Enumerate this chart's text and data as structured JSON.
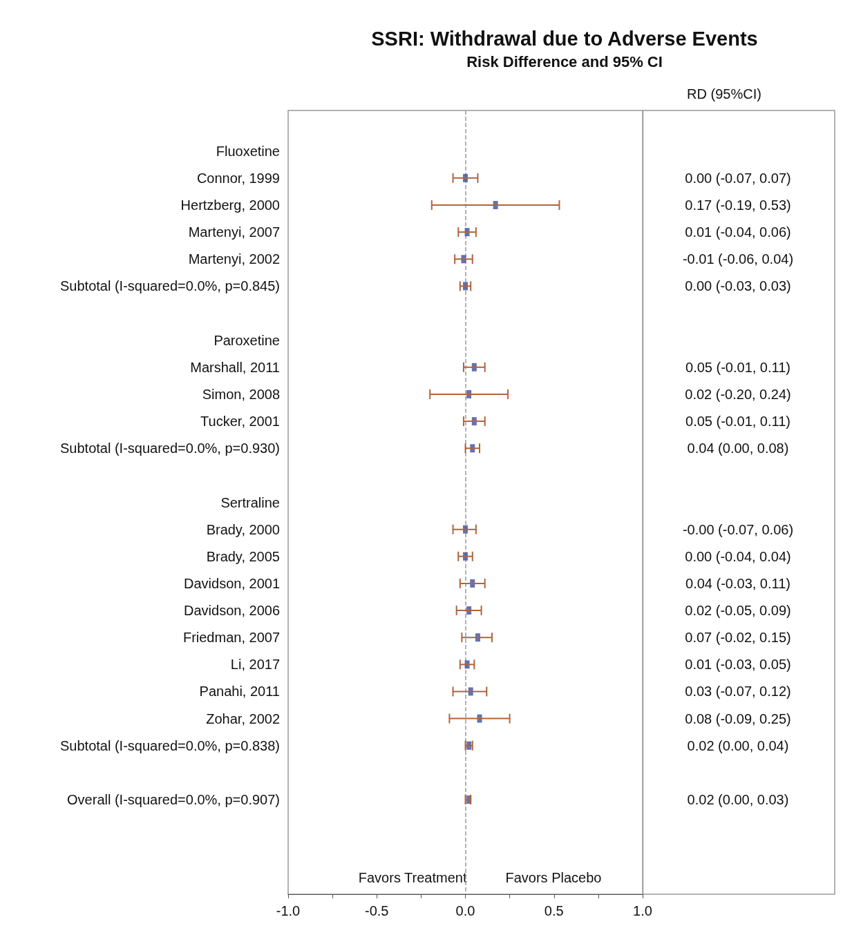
{
  "chart_data": {
    "type": "scatter",
    "orientation": "horizontal",
    "title": "SSRI: Withdrawal due to Adverse Events",
    "subtitle": "Risk Difference and 95% CI",
    "categories": [
      null,
      "Fluoxetine",
      "Connor, 1999",
      "Hertzberg, 2000",
      "Martenyi, 2007",
      "Martenyi, 2002",
      "Subtotal (I-squared=0.0%, p=0.845)",
      null,
      "Paroxetine",
      "Marshall, 2011",
      "Simon, 2008",
      "Tucker, 2001",
      "Subtotal (I-squared=0.0%, p=0.930)",
      null,
      "Sertraline",
      "Brady, 2000",
      "Brady, 2005",
      "Davidson, 2001",
      "Davidson, 2006",
      "Friedman, 2007",
      "Li, 2017",
      "Panahi, 2011",
      "Zohar, 2002",
      "Subtotal (I-squared=0.0%, p=0.838)",
      null,
      "Overall (I-squared=0.0%, p=0.907)",
      null,
      null,
      null
    ],
    "values": [
      null,
      null,
      0.0,
      0.17,
      0.01,
      -0.01,
      0.0,
      null,
      null,
      0.05,
      0.02,
      0.05,
      0.04,
      null,
      null,
      0.0,
      0.0,
      0.04,
      0.02,
      0.07,
      0.01,
      0.03,
      0.08,
      0.02,
      null,
      0.02,
      null,
      null,
      null
    ],
    "errors": [
      null,
      null,
      [
        -0.07,
        0.07
      ],
      [
        -0.19,
        0.53
      ],
      [
        -0.04,
        0.06
      ],
      [
        -0.06,
        0.04
      ],
      [
        -0.03,
        0.03
      ],
      null,
      null,
      [
        -0.01,
        0.11
      ],
      [
        -0.2,
        0.24
      ],
      [
        -0.01,
        0.11
      ],
      [
        0.0,
        0.08
      ],
      null,
      null,
      [
        -0.07,
        0.06
      ],
      [
        -0.04,
        0.04
      ],
      [
        -0.03,
        0.11
      ],
      [
        -0.05,
        0.09
      ],
      [
        -0.02,
        0.15
      ],
      [
        -0.03,
        0.05
      ],
      [
        -0.07,
        0.12
      ],
      [
        -0.09,
        0.25
      ],
      [
        0.0,
        0.04
      ],
      null,
      [
        0.0,
        0.03
      ],
      null,
      null,
      null
    ],
    "value_labels": [
      null,
      null,
      "0.00 (-0.07, 0.07)",
      "0.17 (-0.19, 0.53)",
      "0.01 (-0.04, 0.06)",
      "-0.01 (-0.06, 0.04)",
      "0.00 (-0.03, 0.03)",
      null,
      null,
      "0.05 (-0.01, 0.11)",
      "0.02 (-0.20, 0.24)",
      "0.05 (-0.01, 0.11)",
      "0.04 (0.00, 0.08)",
      null,
      null,
      "-0.00 (-0.07, 0.06)",
      "0.00 (-0.04, 0.04)",
      "0.04 (-0.03, 0.11)",
      "0.02 (-0.05, 0.09)",
      "0.07 (-0.02, 0.15)",
      "0.01 (-0.03, 0.05)",
      "0.03 (-0.07, 0.12)",
      "0.08 (-0.09, 0.25)",
      "0.02 (0.00, 0.04)",
      null,
      "0.02 (0.00, 0.03)",
      null,
      null,
      null
    ],
    "color": "#3f4f9c",
    "marker": "square",
    "xlim": [
      -1.0,
      1.0
    ],
    "xticks": [
      {
        "value": -1,
        "label": "-1.0"
      },
      {
        "value": -0.75,
        "label": null
      },
      {
        "value": -0.5,
        "label": "-0.5"
      },
      {
        "value": -0.25,
        "label": null
      },
      {
        "value": 0,
        "label": "0.0"
      },
      {
        "value": 0.25,
        "label": null
      },
      {
        "value": 0.5,
        "label": "0.5"
      },
      {
        "value": 0.75,
        "label": null
      },
      {
        "value": 1,
        "label": "1.0"
      }
    ],
    "ref_lines": [
      {
        "axis": "x",
        "value": 0,
        "label": null,
        "color": "#999999",
        "line_style": "dashed"
      }
    ],
    "annotations": [
      "RD (95%CI)",
      "Favors Treatment",
      "Favors Placebo"
    ]
  }
}
